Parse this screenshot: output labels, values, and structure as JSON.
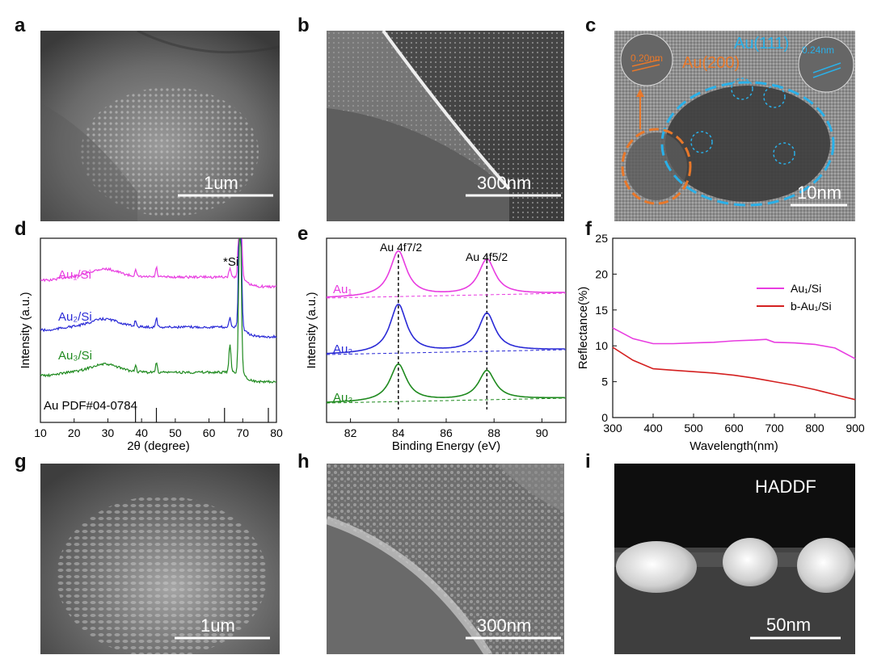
{
  "panels": {
    "a": {
      "letter": "a",
      "scale": "1um"
    },
    "b": {
      "letter": "b",
      "scale": "300nm"
    },
    "c": {
      "letter": "c",
      "scale": "10nm",
      "lattice_a": "0.20nm",
      "lattice_b": "0.24nm",
      "plane_a": "Au(200)",
      "plane_b": "Au(111)"
    },
    "d": {
      "letter": "d"
    },
    "e": {
      "letter": "e"
    },
    "f": {
      "letter": "f"
    },
    "g": {
      "letter": "g",
      "scale": "1um"
    },
    "h": {
      "letter": "h",
      "scale": "300nm"
    },
    "i": {
      "letter": "i",
      "scale": "50nm",
      "mode": "HADDF"
    }
  },
  "colors": {
    "magenta": "#e83ce0",
    "blue": "#2a2ad6",
    "green": "#1f8a1f",
    "red": "#d42020",
    "orange": "#e8782a",
    "cyan": "#2ab0e8"
  },
  "chart_data": [
    {
      "id": "d",
      "type": "line",
      "xlabel": "2θ (degree)",
      "ylabel": "Intensity (a.u.)",
      "xlim": [
        10,
        80
      ],
      "xticks": [
        10,
        20,
        30,
        40,
        50,
        60,
        70,
        80
      ],
      "series": [
        {
          "name": "Au₁/Si",
          "color": "#e83ce0"
        },
        {
          "name": "Au₂/Si",
          "color": "#2a2ad6"
        },
        {
          "name": "Au₃/Si",
          "color": "#1f8a1f"
        }
      ],
      "reference_label": "Au PDF#04-0784",
      "reference_peaks": [
        38.2,
        44.4,
        64.6,
        77.6
      ],
      "annotation": "*Si",
      "si_peak": 69.2
    },
    {
      "id": "e",
      "type": "line",
      "xlabel": "Binding Energy (eV)",
      "ylabel": "Intensity (a.u.)",
      "xlim": [
        81,
        91
      ],
      "xticks": [
        82,
        84,
        86,
        88,
        90
      ],
      "peak_labels": [
        "Au 4f7/2",
        "Au 4f5/2"
      ],
      "peaks": [
        84.0,
        87.7
      ],
      "series": [
        {
          "name": "Au₁",
          "color": "#e83ce0"
        },
        {
          "name": "Au₂",
          "color": "#2a2ad6"
        },
        {
          "name": "Au₃",
          "color": "#1f8a1f"
        }
      ]
    },
    {
      "id": "f",
      "type": "line",
      "xlabel": "Wavelength(nm)",
      "ylabel": "Reflectance(%)",
      "xlim": [
        300,
        900
      ],
      "ylim": [
        0,
        25
      ],
      "xticks": [
        300,
        400,
        500,
        600,
        700,
        800,
        900
      ],
      "yticks": [
        0,
        5,
        10,
        15,
        20,
        25
      ],
      "x": [
        300,
        350,
        400,
        450,
        500,
        550,
        600,
        650,
        680,
        700,
        750,
        800,
        850,
        900
      ],
      "series": [
        {
          "name": "Au₁/Si",
          "color": "#e83ce0",
          "values": [
            12.5,
            11.0,
            10.3,
            10.3,
            10.4,
            10.5,
            10.7,
            10.8,
            10.9,
            10.5,
            10.4,
            10.2,
            9.7,
            8.2
          ]
        },
        {
          "name": "b-Au₁/Si",
          "color": "#d42020",
          "values": [
            9.8,
            8.0,
            6.8,
            6.6,
            6.4,
            6.2,
            5.9,
            5.5,
            5.2,
            5.0,
            4.5,
            3.9,
            3.2,
            2.5
          ]
        }
      ]
    }
  ]
}
